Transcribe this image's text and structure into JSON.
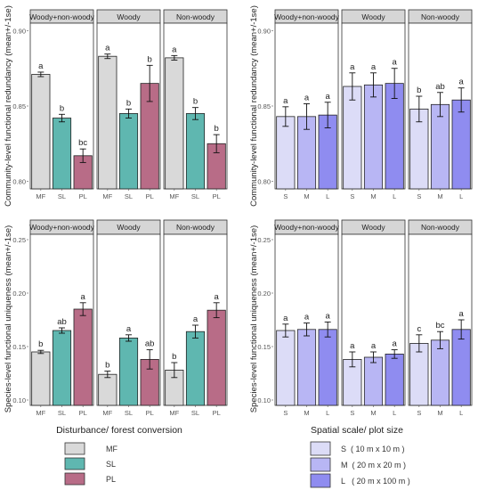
{
  "colors": {
    "MF": "#d9d9d9",
    "SL": "#5fb7b0",
    "PL": "#b86c87",
    "S": "#dcdcf7",
    "M": "#b8b6f4",
    "L": "#8f8cf0",
    "strip": "#d6d6d6",
    "frame": "#333333"
  },
  "left_axis_label": "Disturbance/ forest conversion",
  "right_axis_label": "Spatial scale/ plot size",
  "legend_left": [
    {
      "key": "MF",
      "label": "MF"
    },
    {
      "key": "SL",
      "label": "SL"
    },
    {
      "key": "PL",
      "label": "PL"
    }
  ],
  "legend_right": [
    {
      "key": "S",
      "label": "S  ( 10 m x 10 m )"
    },
    {
      "key": "M",
      "label": "M  ( 20 m x 20 m )"
    },
    {
      "key": "L",
      "label": "L   ( 20 m x 100 m )"
    }
  ],
  "chart_data": [
    {
      "type": "bar",
      "ylabel": "Community-level functional redundancy (mean+/-1se)",
      "ylim": [
        0.795,
        0.905
      ],
      "yticks": [
        "0.80",
        "0.85",
        "0.90"
      ],
      "tick_values": [
        0.8,
        0.85,
        0.9
      ],
      "facets": [
        {
          "title": "Woody+non-woody",
          "categories": [
            "MF",
            "SL",
            "PL"
          ],
          "values": [
            0.871,
            0.842,
            0.817
          ],
          "se": [
            0.0015,
            0.0025,
            0.0045
          ],
          "labels": [
            "a",
            "b",
            "bc"
          ]
        },
        {
          "title": "Woody",
          "categories": [
            "MF",
            "SL",
            "PL"
          ],
          "values": [
            0.883,
            0.845,
            0.865
          ],
          "se": [
            0.0015,
            0.003,
            0.012
          ],
          "labels": [
            "a",
            "b",
            "b"
          ]
        },
        {
          "title": "Non-woody",
          "categories": [
            "MF",
            "SL",
            "PL"
          ],
          "values": [
            0.882,
            0.845,
            0.825
          ],
          "se": [
            0.0015,
            0.004,
            0.006
          ],
          "labels": [
            "a",
            "b",
            "b"
          ]
        }
      ]
    },
    {
      "type": "bar",
      "ylabel": "Community-level functional redundancy (mean+/-1se)",
      "ylim": [
        0.795,
        0.905
      ],
      "yticks": [
        "0.80",
        "0.85",
        "0.90"
      ],
      "tick_values": [
        0.8,
        0.85,
        0.9
      ],
      "facets": [
        {
          "title": "Woody+non-woody",
          "categories": [
            "S",
            "M",
            "L"
          ],
          "values": [
            0.843,
            0.843,
            0.844
          ],
          "se": [
            0.0065,
            0.0085,
            0.0085
          ],
          "labels": [
            "a",
            "a",
            "a"
          ]
        },
        {
          "title": "Woody",
          "categories": [
            "S",
            "M",
            "L"
          ],
          "values": [
            0.863,
            0.864,
            0.865
          ],
          "se": [
            0.009,
            0.008,
            0.01
          ],
          "labels": [
            "a",
            "a",
            "a"
          ]
        },
        {
          "title": "Non-woody",
          "categories": [
            "S",
            "M",
            "L"
          ],
          "values": [
            0.848,
            0.851,
            0.854
          ],
          "se": [
            0.0085,
            0.008,
            0.008
          ],
          "labels": [
            "b",
            "ab",
            "a"
          ]
        }
      ]
    },
    {
      "type": "bar",
      "ylabel": "Species-level functional uniqueness (mean+/-1se)",
      "ylim": [
        0.095,
        0.255
      ],
      "yticks": [
        "0.10",
        "0.15",
        "0.20",
        "0.25"
      ],
      "tick_values": [
        0.1,
        0.15,
        0.2,
        0.25
      ],
      "facets": [
        {
          "title": "Woody+non-woody",
          "categories": [
            "MF",
            "SL",
            "PL"
          ],
          "values": [
            0.145,
            0.165,
            0.185
          ],
          "se": [
            0.0015,
            0.0025,
            0.006
          ],
          "labels": [
            "b",
            "ab",
            "a"
          ]
        },
        {
          "title": "Woody",
          "categories": [
            "MF",
            "SL",
            "PL"
          ],
          "values": [
            0.124,
            0.158,
            0.138
          ],
          "se": [
            0.003,
            0.003,
            0.009
          ],
          "labels": [
            "b",
            "a",
            "ab"
          ]
        },
        {
          "title": "Non-woody",
          "categories": [
            "MF",
            "SL",
            "PL"
          ],
          "values": [
            0.128,
            0.164,
            0.184
          ],
          "se": [
            0.007,
            0.006,
            0.007
          ],
          "labels": [
            "b",
            "a",
            "a"
          ]
        }
      ]
    },
    {
      "type": "bar",
      "ylabel": "Species-level functional uniqueness (mean+/-1se)",
      "ylim": [
        0.095,
        0.255
      ],
      "yticks": [
        "0.10",
        "0.15",
        "0.20",
        "0.25"
      ],
      "tick_values": [
        0.1,
        0.15,
        0.2,
        0.25
      ],
      "facets": [
        {
          "title": "Woody+non-woody",
          "categories": [
            "S",
            "M",
            "L"
          ],
          "values": [
            0.165,
            0.166,
            0.166
          ],
          "se": [
            0.006,
            0.006,
            0.007
          ],
          "labels": [
            "a",
            "a",
            "a"
          ]
        },
        {
          "title": "Woody",
          "categories": [
            "S",
            "M",
            "L"
          ],
          "values": [
            0.138,
            0.14,
            0.143
          ],
          "se": [
            0.007,
            0.005,
            0.004
          ],
          "labels": [
            "a",
            "a",
            "a"
          ]
        },
        {
          "title": "Non-woody",
          "categories": [
            "S",
            "M",
            "L"
          ],
          "values": [
            0.153,
            0.156,
            0.166
          ],
          "se": [
            0.008,
            0.008,
            0.009
          ],
          "labels": [
            "c",
            "bc",
            "a"
          ]
        }
      ]
    }
  ]
}
